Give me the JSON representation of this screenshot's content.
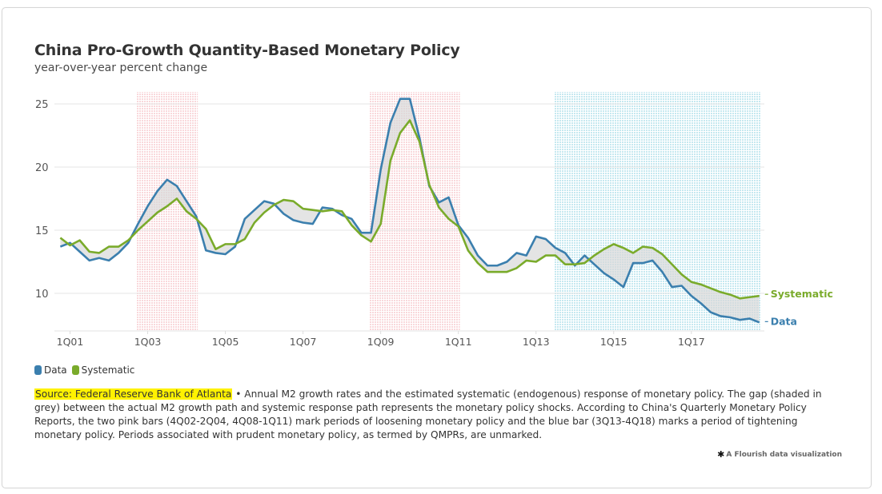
{
  "header": {
    "title": "China Pro-Growth Quantity-Based Monetary Policy",
    "subtitle": "year-over-year percent change"
  },
  "legend": {
    "items": [
      {
        "label": "Data",
        "color": "#3b7fae"
      },
      {
        "label": "Systematic",
        "color": "#7aab2b"
      }
    ]
  },
  "notes": {
    "source": "Source: Federal Reserve Bank of Atlanta",
    "separator": " • ",
    "text": "Annual M2 growth rates and the estimated systematic (endogenous) response of monetary policy. The gap (shaded in grey) between the actual M2 growth path and systemic response path represents the monetary policy shocks. According to China's Quarterly Monetary Policy Reports, the two pink bars (4Q02-2Q04, 4Q08-1Q11) mark periods of loosening monetary policy and the blue bar (3Q13-4Q18) marks a period of tightening monetary policy. Periods associated with prudent monetary policy, as termed by QMPRs, are unmarked."
  },
  "credit": {
    "icon": "flourish-star-icon",
    "text": "A Flourish data visualization"
  },
  "chart_data": {
    "type": "line",
    "title": "China Pro-Growth Quantity-Based Monetary Policy",
    "subtitle": "year-over-year percent change",
    "xlabel": "",
    "ylabel": "",
    "ylim": [
      7,
      26
    ],
    "yticks": [
      10,
      15,
      20,
      25
    ],
    "xticks": [
      "1Q01",
      "1Q03",
      "1Q05",
      "1Q07",
      "1Q09",
      "1Q11",
      "1Q13",
      "1Q15",
      "1Q17"
    ],
    "grid": true,
    "legend_position": "bottom-left",
    "x": [
      "4Q00",
      "1Q01",
      "2Q01",
      "3Q01",
      "4Q01",
      "1Q02",
      "2Q02",
      "3Q02",
      "4Q02",
      "1Q03",
      "2Q03",
      "3Q03",
      "4Q03",
      "1Q04",
      "2Q04",
      "3Q04",
      "4Q04",
      "1Q05",
      "2Q05",
      "3Q05",
      "4Q05",
      "1Q06",
      "2Q06",
      "3Q06",
      "4Q06",
      "1Q07",
      "2Q07",
      "3Q07",
      "4Q07",
      "1Q08",
      "2Q08",
      "3Q08",
      "4Q08",
      "1Q09",
      "2Q09",
      "3Q09",
      "4Q09",
      "1Q10",
      "2Q10",
      "3Q10",
      "4Q10",
      "1Q11",
      "2Q11",
      "3Q11",
      "4Q11",
      "1Q12",
      "2Q12",
      "3Q12",
      "4Q12",
      "1Q13",
      "2Q13",
      "3Q13",
      "4Q13",
      "1Q14",
      "2Q14",
      "3Q14",
      "4Q14",
      "1Q15",
      "2Q15",
      "3Q15",
      "4Q15",
      "1Q16",
      "2Q16",
      "3Q16",
      "4Q16",
      "1Q17",
      "2Q17",
      "3Q17",
      "4Q17",
      "1Q18",
      "2Q18",
      "3Q18",
      "4Q18"
    ],
    "series": [
      {
        "name": "Data",
        "color": "#3b7fae",
        "end_label": "Data",
        "values": [
          13.7,
          14.0,
          13.3,
          12.6,
          12.8,
          12.6,
          13.2,
          14.0,
          15.5,
          16.9,
          18.1,
          19.0,
          18.5,
          17.3,
          16.1,
          13.4,
          13.2,
          13.1,
          13.7,
          15.9,
          16.6,
          17.3,
          17.1,
          16.3,
          15.8,
          15.6,
          15.5,
          16.8,
          16.7,
          16.2,
          15.9,
          14.8,
          14.8,
          19.8,
          23.5,
          25.4,
          25.4,
          22.3,
          18.5,
          17.2,
          17.6,
          15.4,
          14.4,
          13.0,
          12.2,
          12.2,
          12.5,
          13.2,
          13.0,
          14.5,
          14.3,
          13.6,
          13.2,
          12.2,
          13.0,
          12.3,
          11.6,
          11.1,
          10.5,
          12.4,
          12.4,
          12.6,
          11.7,
          10.5,
          10.6,
          9.8,
          9.2,
          8.5,
          8.2,
          8.1,
          7.9,
          8.0,
          7.7
        ]
      },
      {
        "name": "Systematic",
        "color": "#7aab2b",
        "end_label": "Systematic",
        "values": [
          14.4,
          13.8,
          14.2,
          13.3,
          13.2,
          13.7,
          13.7,
          14.2,
          15.0,
          15.7,
          16.4,
          16.9,
          17.5,
          16.5,
          15.9,
          15.1,
          13.5,
          13.9,
          13.9,
          14.3,
          15.6,
          16.4,
          17.0,
          17.4,
          17.3,
          16.7,
          16.6,
          16.5,
          16.6,
          16.5,
          15.4,
          14.6,
          14.1,
          15.5,
          20.5,
          22.7,
          23.7,
          22.0,
          18.6,
          16.8,
          15.9,
          15.3,
          13.4,
          12.4,
          11.7,
          11.7,
          11.7,
          12.0,
          12.6,
          12.5,
          13.0,
          13.0,
          12.3,
          12.3,
          12.4,
          13.0,
          13.5,
          13.9,
          13.6,
          13.2,
          13.7,
          13.6,
          13.1,
          12.3,
          11.5,
          10.9,
          10.7,
          10.4,
          10.1,
          9.9,
          9.6,
          9.7,
          9.8
        ]
      }
    ],
    "bands": [
      {
        "name": "loosening-1",
        "from": "4Q02",
        "to": "2Q04",
        "color": "#f4b8bd"
      },
      {
        "name": "loosening-2",
        "from": "4Q08",
        "to": "1Q11",
        "color": "#f4b8bd"
      },
      {
        "name": "tightening",
        "from": "3Q13",
        "to": "4Q18",
        "color": "#9fd8e6"
      }
    ],
    "gap_fill_color": "#d9d9d9"
  }
}
